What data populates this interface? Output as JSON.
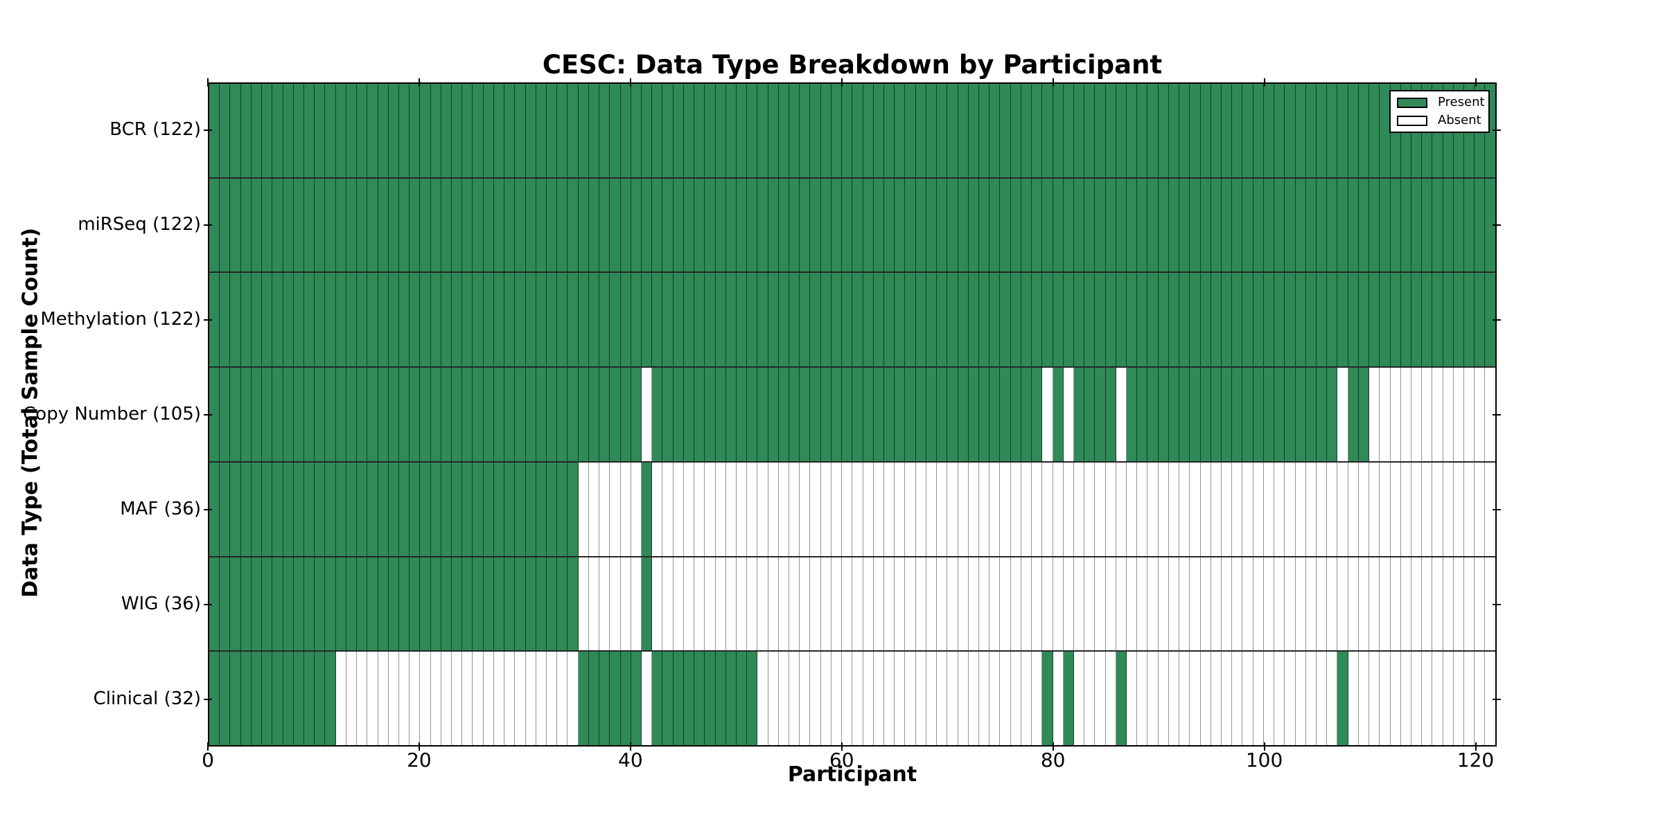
{
  "chart_data": {
    "type": "heatmap",
    "title": "CESC: Data Type Breakdown by Participant",
    "xlabel": "Participant",
    "ylabel": "Data Type (Total Sample Count)",
    "x_ticks": [
      0,
      20,
      40,
      60,
      80,
      100,
      120
    ],
    "x_range": [
      0,
      122
    ],
    "n_participants": 122,
    "grid": false,
    "legend_position": "upper right",
    "legend": [
      {
        "label": "Present",
        "color": "#2F8A57"
      },
      {
        "label": "Absent",
        "color": "#FFFFFF"
      }
    ],
    "colors": {
      "present": "#2F8A57",
      "absent": "#FFFFFF",
      "edge": "#000000"
    },
    "rows": [
      {
        "label": "BCR (122)",
        "data_type": "BCR",
        "total_samples": 122,
        "present_ranges": [
          [
            0,
            122
          ]
        ]
      },
      {
        "label": "miRSeq (122)",
        "data_type": "miRSeq",
        "total_samples": 122,
        "present_ranges": [
          [
            0,
            122
          ]
        ]
      },
      {
        "label": "Methylation (122)",
        "data_type": "Methylation",
        "total_samples": 122,
        "present_ranges": [
          [
            0,
            122
          ]
        ]
      },
      {
        "label": "Copy Number (105)",
        "data_type": "Copy Number",
        "total_samples": 105,
        "present_ranges": [
          [
            0,
            41
          ],
          [
            42,
            79
          ],
          [
            80,
            81
          ],
          [
            82,
            86
          ],
          [
            87,
            107
          ],
          [
            108,
            110
          ]
        ]
      },
      {
        "label": "MAF (36)",
        "data_type": "MAF",
        "total_samples": 36,
        "present_ranges": [
          [
            0,
            35
          ],
          [
            41,
            42
          ]
        ]
      },
      {
        "label": "WIG (36)",
        "data_type": "WIG",
        "total_samples": 36,
        "present_ranges": [
          [
            0,
            35
          ],
          [
            41,
            42
          ]
        ]
      },
      {
        "label": "Clinical (32)",
        "data_type": "Clinical",
        "total_samples": 32,
        "present_ranges": [
          [
            0,
            12
          ],
          [
            35,
            41
          ],
          [
            42,
            52
          ],
          [
            79,
            80
          ],
          [
            81,
            82
          ],
          [
            86,
            87
          ],
          [
            107,
            108
          ]
        ]
      }
    ]
  }
}
